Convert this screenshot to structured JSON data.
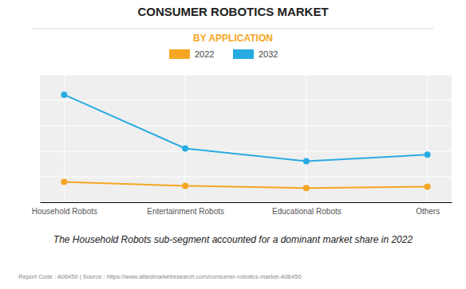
{
  "chart_data": {
    "type": "line",
    "title": "CONSUMER ROBOTICS MARKET",
    "subtitle": "BY APPLICATION",
    "categories": [
      "Household Robots",
      "Entertainment Robots",
      "Educational Robots",
      "Others"
    ],
    "series": [
      {
        "name": "2022",
        "color": "#F5A623",
        "values": [
          0.72,
          0.58,
          0.5,
          0.55
        ],
        "marker": "circle"
      },
      {
        "name": "2032",
        "color": "#29ABE2",
        "values": [
          3.8,
          1.9,
          1.45,
          1.68
        ],
        "marker": "circle"
      }
    ],
    "ylim": [
      0,
      4.5
    ],
    "yticks": [
      0,
      0.9,
      1.8,
      2.7,
      3.6,
      4.5
    ],
    "grid": true,
    "legend": "top",
    "tick_labels": "x",
    "annotations": [
      "The Household Robots sub-segment accounted for a dominant market share in 2022",
      "Report Code : A06450  |  Source : https://www.alliedmarketresearch.com/consumer-robotics-market-A06450"
    ]
  }
}
